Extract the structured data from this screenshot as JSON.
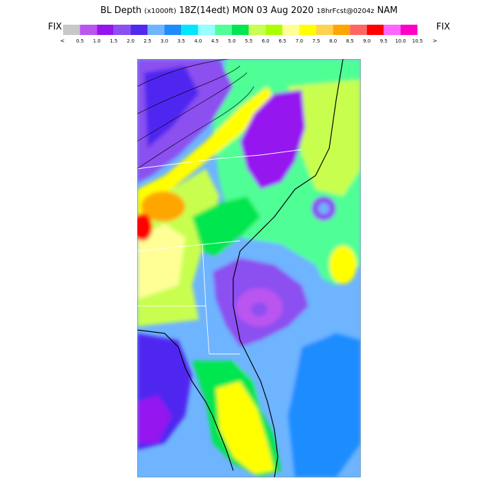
{
  "title": {
    "product": "BL Depth",
    "units": "(x1000ft)",
    "valid": "18Z(14edt)",
    "date": "MON 03 Aug 2020",
    "forecast": "18hrFcst@0204z",
    "model": "NAM"
  },
  "fix_left": "FIX",
  "fix_right": "FIX",
  "legend": {
    "left_arrow": "<",
    "right_arrow": ">",
    "colors": [
      "#c8c8c8",
      "#bb55f0",
      "#9614f0",
      "#8c50f0",
      "#5028f0",
      "#6eb4ff",
      "#1e8cff",
      "#00e6ff",
      "#96ffff",
      "#50ff96",
      "#00e650",
      "#c8ff50",
      "#aaff00",
      "#ffff96",
      "#ffff00",
      "#ffd250",
      "#ffa500",
      "#ff6464",
      "#ff0000",
      "#ff64ff",
      "#ff00c8"
    ],
    "labels": [
      "0.5",
      "1.0",
      "1.5",
      "2.0",
      "2.5",
      "3.0",
      "3.5",
      "4.0",
      "4.5",
      "5.0",
      "5.5",
      "6.0",
      "6.5",
      "7.0",
      "7.5",
      "8.0",
      "8.5",
      "9.0",
      "9.5",
      "10.0",
      "10.5"
    ]
  }
}
